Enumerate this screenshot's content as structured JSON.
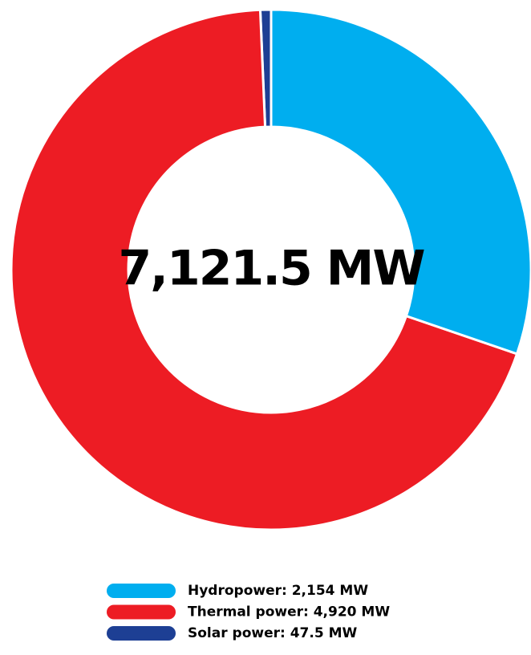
{
  "chart_data": {
    "type": "donut",
    "center_text": "7,121.5 MW",
    "categories": [
      "Hydropower: 2,154 MW",
      "Thermal power: 4,920 MW",
      "Solar power: 47.5 MW"
    ],
    "values": [
      2154,
      4920,
      47.5
    ],
    "colors": [
      "#00aeef",
      "#ed1c24",
      "#1d3f94"
    ]
  }
}
